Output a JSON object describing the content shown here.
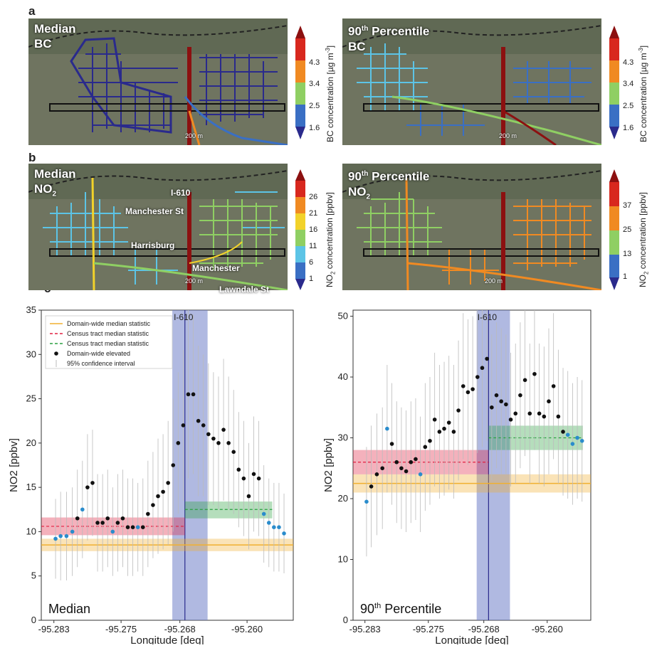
{
  "panels": {
    "a": "a",
    "b": "b",
    "c": "c"
  },
  "maps": [
    {
      "id": "a-left",
      "title1": "Median",
      "title2": "BC",
      "scale": "200 m",
      "palette": "bc-median"
    },
    {
      "id": "a-right",
      "title1": "90",
      "title1_sup": "th",
      "title1_rest": " Percentile",
      "title2": "BC",
      "scale": "200 m",
      "palette": "bc-p90"
    },
    {
      "id": "b-left",
      "title1": "Median",
      "title2": "NO",
      "title2_sub": "2",
      "scale": "200 m",
      "palette": "no2-median"
    },
    {
      "id": "b-right",
      "title1": "90",
      "title1_sup": "th",
      "title1_rest": " Percentile",
      "title2": "NO",
      "title2_sub": "2",
      "scale": "200 m",
      "palette": "no2-p90"
    }
  ],
  "streets": {
    "i610": "I-610",
    "manchester_st": "Manchester St",
    "harrisburg": "Harrisburg",
    "manchester": "Manchester",
    "lawndale": "Lawndale St"
  },
  "colorbars": {
    "bc": {
      "title": "BC concentration [µg m",
      "title_sup": "-3",
      "title_end": "]",
      "ticks": [
        "4.3",
        "3.4",
        "2.5",
        "1.6"
      ]
    },
    "no2_median": {
      "title_pre": "NO",
      "title_sub": "2",
      "title_post": " concentration [ppbv]",
      "ticks": [
        "26",
        "21",
        "16",
        "11",
        "6",
        "1"
      ]
    },
    "no2_p90": {
      "title_pre": "NO",
      "title_sub": "2",
      "title_post": " concentration [ppbv]",
      "ticks": [
        "37",
        "25",
        "13",
        "1"
      ]
    },
    "colors": [
      "#2a2a8c",
      "#3a6fc4",
      "#5cc4e6",
      "#8fcf63",
      "#f2d22a",
      "#f08a22",
      "#d8281e",
      "#8c1010"
    ]
  },
  "chart_data": [
    {
      "type": "scatter",
      "xlabel": "Longitude [deg]",
      "ylabel": "NO2 [ppbv]",
      "xlim": [
        -95.2845,
        -95.2545
      ],
      "ylim": [
        0,
        35
      ],
      "xticks": [
        "-95.283",
        "-95.275",
        "-95.268",
        "-95.260"
      ],
      "xtick_values": [
        -95.283,
        -95.275,
        -95.268,
        -95.26
      ],
      "yticks": [
        0,
        5,
        10,
        15,
        20,
        25,
        30,
        35
      ],
      "corner_label": "Median",
      "band_label": "I-610",
      "band": [
        -95.2689,
        -95.2647
      ],
      "vline": -95.2674,
      "legend": [
        "Domain-wide median statistic",
        "Census tract median statistic",
        "Census tract median statistic",
        "Domain-wide elevated",
        "95% confidence interval"
      ],
      "domain_line": {
        "y": 8.5,
        "band": [
          7.8,
          9.2
        ],
        "color": "#f0b030"
      },
      "tract_lines": [
        {
          "x": [
            -95.2845,
            -95.2674
          ],
          "y": 10.6,
          "band": [
            9.6,
            11.6
          ],
          "color": "#e02040"
        },
        {
          "x": [
            -95.2674,
            -95.257
          ],
          "y": 12.5,
          "band": [
            11.5,
            13.4
          ],
          "color": "#2aa040"
        }
      ],
      "x": [
        -95.2828,
        -95.2822,
        -95.2815,
        -95.2808,
        -95.2802,
        -95.2796,
        -95.279,
        -95.2784,
        -95.2778,
        -95.2772,
        -95.2766,
        -95.276,
        -95.2754,
        -95.2748,
        -95.2742,
        -95.2736,
        -95.273,
        -95.2724,
        -95.2718,
        -95.2712,
        -95.2706,
        -95.27,
        -95.2694,
        -95.2688,
        -95.2682,
        -95.2676,
        -95.267,
        -95.2664,
        -95.2658,
        -95.2652,
        -95.2646,
        -95.264,
        -95.2634,
        -95.2628,
        -95.2622,
        -95.2616,
        -95.261,
        -95.2604,
        -95.2598,
        -95.2592,
        -95.2586,
        -95.258,
        -95.2574,
        -95.2568,
        -95.2562,
        -95.2556
      ],
      "y": [
        9.2,
        9.5,
        9.5,
        10.0,
        11.5,
        12.5,
        15.0,
        15.5,
        11.0,
        11.0,
        11.5,
        10.0,
        11.0,
        11.5,
        10.5,
        10.5,
        10.5,
        10.5,
        12.0,
        13.0,
        14.0,
        14.5,
        15.5,
        17.5,
        20.0,
        22.0,
        25.5,
        25.5,
        22.5,
        22.0,
        21.0,
        20.5,
        20.0,
        21.5,
        20.0,
        19.0,
        17.0,
        16.0,
        14.0,
        16.5,
        16.0,
        12.0,
        11.0,
        10.5,
        10.5,
        9.8
      ],
      "elevated": [
        false,
        false,
        false,
        false,
        true,
        false,
        true,
        true,
        true,
        true,
        true,
        false,
        true,
        true,
        true,
        true,
        false,
        true,
        true,
        true,
        true,
        true,
        true,
        true,
        true,
        true,
        true,
        true,
        true,
        true,
        true,
        true,
        true,
        true,
        true,
        true,
        true,
        true,
        true,
        true,
        true,
        false,
        false,
        false,
        false,
        false
      ],
      "ci": [
        4.5,
        5.0,
        5.0,
        5.0,
        5.5,
        5.5,
        6.0,
        6.0,
        5.5,
        5.5,
        5.5,
        5.0,
        5.5,
        5.5,
        5.5,
        5.5,
        5.0,
        5.5,
        6.0,
        6.0,
        6.5,
        6.5,
        7.0,
        7.5,
        8.0,
        8.5,
        9.5,
        9.0,
        8.5,
        8.0,
        8.0,
        7.5,
        7.5,
        8.0,
        7.5,
        7.0,
        6.5,
        6.5,
        6.0,
        6.5,
        6.5,
        5.5,
        5.0,
        5.0,
        5.0,
        4.5
      ]
    },
    {
      "type": "scatter",
      "xlabel": "Longitude [deg]",
      "ylabel": "NO2 [ppbv]",
      "xlim": [
        -95.2845,
        -95.2545
      ],
      "ylim": [
        0,
        51
      ],
      "xticks": [
        "-95.283",
        "-95.275",
        "-95.268",
        "-95.260"
      ],
      "xtick_values": [
        -95.283,
        -95.275,
        -95.268,
        -95.26
      ],
      "yticks": [
        0,
        10,
        20,
        30,
        40,
        50
      ],
      "corner_label": "90",
      "corner_label_sup": "th",
      "corner_label_rest": " Percentile",
      "band_label": "I-610",
      "band": [
        -95.2689,
        -95.2647
      ],
      "vline": -95.2674,
      "domain_line": {
        "y": 22.5,
        "band": [
          21.0,
          24.0
        ],
        "color": "#f0b030"
      },
      "tract_lines": [
        {
          "x": [
            -95.2845,
            -95.2674
          ],
          "y": 26.0,
          "band": [
            24.0,
            28.0
          ],
          "color": "#e02040"
        },
        {
          "x": [
            -95.2674,
            -95.2555
          ],
          "y": 30.0,
          "band": [
            28.0,
            32.0
          ],
          "color": "#2aa040"
        }
      ],
      "x": [
        -95.2828,
        -95.2822,
        -95.2815,
        -95.2808,
        -95.2802,
        -95.2796,
        -95.279,
        -95.2784,
        -95.2778,
        -95.2772,
        -95.2766,
        -95.276,
        -95.2754,
        -95.2748,
        -95.2742,
        -95.2736,
        -95.273,
        -95.2724,
        -95.2718,
        -95.2712,
        -95.2706,
        -95.27,
        -95.2694,
        -95.2688,
        -95.2682,
        -95.2676,
        -95.267,
        -95.2664,
        -95.2658,
        -95.2652,
        -95.2646,
        -95.264,
        -95.2634,
        -95.2628,
        -95.2622,
        -95.2616,
        -95.261,
        -95.2604,
        -95.2598,
        -95.2592,
        -95.2586,
        -95.258,
        -95.2574,
        -95.2568,
        -95.2562,
        -95.2556
      ],
      "y": [
        19.5,
        22.0,
        24.0,
        25.0,
        31.5,
        29.0,
        26.0,
        25.0,
        24.5,
        26.0,
        26.5,
        24.0,
        28.5,
        29.5,
        33.0,
        31.0,
        31.5,
        32.5,
        31.0,
        34.5,
        38.5,
        37.5,
        38.0,
        40.0,
        41.5,
        43.0,
        35.0,
        37.0,
        36.0,
        35.5,
        33.0,
        34.0,
        37.0,
        39.5,
        34.0,
        40.5,
        34.0,
        33.5,
        36.0,
        38.5,
        33.5,
        31.0,
        30.5,
        29.0,
        30.0,
        29.5
      ],
      "elevated": [
        false,
        true,
        true,
        true,
        false,
        true,
        true,
        true,
        true,
        true,
        true,
        false,
        true,
        true,
        true,
        true,
        true,
        true,
        true,
        true,
        true,
        true,
        true,
        true,
        true,
        true,
        true,
        true,
        true,
        true,
        true,
        true,
        true,
        true,
        true,
        true,
        true,
        true,
        true,
        true,
        true,
        true,
        false,
        false,
        false,
        false
      ],
      "ci": [
        9,
        10,
        10,
        10,
        10.5,
        10,
        10,
        10,
        10,
        10,
        10,
        9.5,
        10.5,
        10.5,
        11,
        11,
        11,
        11,
        11,
        11.5,
        12,
        12,
        12,
        12.5,
        13,
        13.5,
        12,
        12,
        12,
        11.5,
        11,
        11.5,
        12,
        12.5,
        11.5,
        12.5,
        11.5,
        11.5,
        12,
        12,
        11,
        10.5,
        10.5,
        10,
        10,
        10
      ]
    }
  ]
}
